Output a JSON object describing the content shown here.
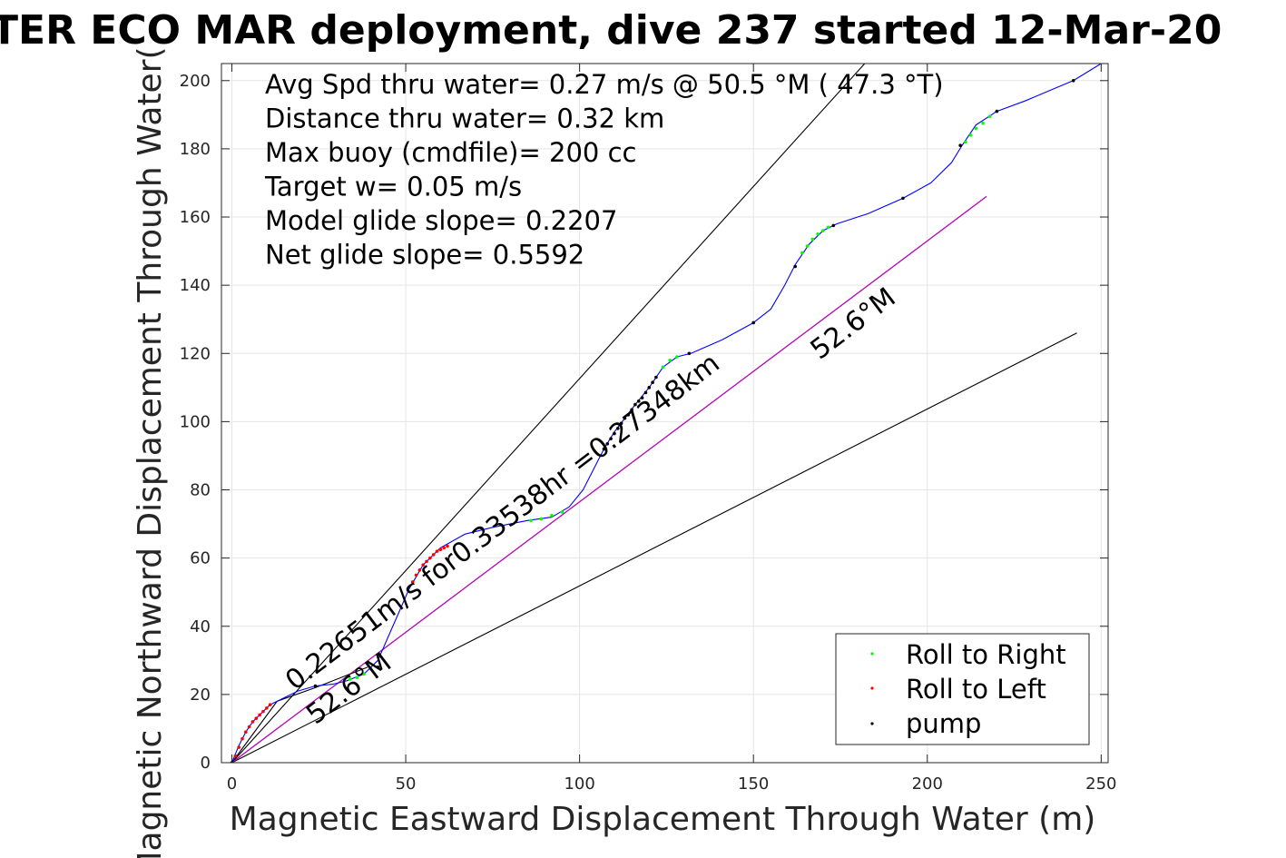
{
  "chart_data": {
    "type": "scatter",
    "title": "TER ECO MAR deployment, dive 237 started 12-Mar-20",
    "xlabel": "Magnetic Eastward Displacement Through Water (m)",
    "ylabel": "Magnetic Northward Displacement Through Water(",
    "xlim": [
      -3,
      252
    ],
    "ylim": [
      0,
      205
    ],
    "xticks": [
      0,
      50,
      100,
      150,
      200,
      250
    ],
    "yticks": [
      0,
      20,
      40,
      60,
      80,
      100,
      120,
      140,
      160,
      180,
      200
    ],
    "grid": true,
    "info_lines": [
      "Avg Spd thru water=  0.27 m/s @  50.5 °M ( 47.3 °T)",
      "Distance thru water=  0.32 km",
      "Max buoy (cmdfile)= 200 cc",
      "Target w= 0.05 m/s",
      "Model glide slope= 0.2207",
      "Net glide slope= 0.5592"
    ],
    "annotations": [
      {
        "text": "0.22651m/s for0.33538hr =0.27348km",
        "x": 18,
        "y": 21,
        "angle": -37.2
      },
      {
        "text": "52.6°M",
        "x": 24,
        "y": 11,
        "angle": -37.2
      },
      {
        "text": "52.6°M",
        "x": 169,
        "y": 118,
        "angle": -37.2
      }
    ],
    "reference_lines": [
      {
        "name": "upper-bound",
        "color": "#000000",
        "x": [
          0,
          182
        ],
        "y": [
          0,
          205
        ]
      },
      {
        "name": "lower-bound",
        "color": "#000000",
        "x": [
          0,
          243
        ],
        "y": [
          0,
          126
        ]
      },
      {
        "name": "net-heading",
        "color": "#000000",
        "x": [
          0,
          217
        ],
        "y": [
          0,
          166
        ]
      },
      {
        "name": "heading-overlay",
        "color": "#cc00cc",
        "x": [
          0,
          217
        ],
        "y": [
          0,
          166
        ]
      },
      {
        "name": "cross-line",
        "color": "#000000",
        "x": [
          0,
          13,
          24,
          39
        ],
        "y": [
          0,
          18,
          22,
          28
        ]
      }
    ],
    "track": {
      "color": "#0000ff",
      "points": [
        [
          0,
          0
        ],
        [
          2,
          5
        ],
        [
          4,
          9
        ],
        [
          6,
          12
        ],
        [
          8,
          14
        ],
        [
          11,
          17
        ],
        [
          15,
          19
        ],
        [
          19,
          21
        ],
        [
          24,
          22.5
        ],
        [
          29,
          23
        ],
        [
          33,
          24
        ],
        [
          38,
          26
        ],
        [
          42,
          30
        ],
        [
          45,
          37
        ],
        [
          48,
          44
        ],
        [
          51,
          51
        ],
        [
          55,
          58
        ],
        [
          60,
          63
        ],
        [
          67,
          67
        ],
        [
          75,
          69
        ],
        [
          85,
          71
        ],
        [
          92,
          72
        ],
        [
          97,
          75
        ],
        [
          101,
          80
        ],
        [
          104,
          86
        ],
        [
          107,
          92
        ],
        [
          110,
          97
        ],
        [
          113,
          101
        ],
        [
          116,
          105
        ],
        [
          120,
          110
        ],
        [
          124,
          116
        ],
        [
          128,
          119
        ],
        [
          132,
          120
        ],
        [
          141,
          124
        ],
        [
          150,
          129
        ],
        [
          155,
          133
        ],
        [
          159,
          140
        ],
        [
          162,
          146
        ],
        [
          166,
          152
        ],
        [
          170,
          156
        ],
        [
          174,
          158
        ],
        [
          183,
          161
        ],
        [
          193,
          165.5
        ],
        [
          201,
          170
        ],
        [
          207,
          176
        ],
        [
          210,
          181
        ],
        [
          214,
          187
        ],
        [
          220,
          191
        ],
        [
          228,
          194
        ],
        [
          235,
          197
        ],
        [
          242,
          200
        ],
        [
          250,
          205
        ]
      ]
    },
    "series": [
      {
        "name": "Roll to Right",
        "color": "#00ff00",
        "points": [
          [
            34,
            24.5
          ],
          [
            36,
            25
          ],
          [
            38,
            26
          ],
          [
            40,
            27.5
          ],
          [
            86,
            71
          ],
          [
            89,
            71.5
          ],
          [
            92,
            72.5
          ],
          [
            95,
            73.5
          ],
          [
            124,
            116
          ],
          [
            126,
            118
          ],
          [
            128,
            119
          ],
          [
            164,
            149.5
          ],
          [
            165.5,
            151.5
          ],
          [
            167,
            153.5
          ],
          [
            168.5,
            155
          ],
          [
            170,
            156
          ],
          [
            171.5,
            157
          ],
          [
            211,
            182
          ],
          [
            212.5,
            184
          ],
          [
            214,
            186
          ],
          [
            216,
            187.5
          ],
          [
            218,
            189.5
          ]
        ]
      },
      {
        "name": "Roll to Left",
        "color": "#ff0000",
        "points": [
          [
            1,
            2
          ],
          [
            2,
            4.5
          ],
          [
            3,
            7
          ],
          [
            4,
            9
          ],
          [
            5,
            10.5
          ],
          [
            6,
            12
          ],
          [
            7,
            13
          ],
          [
            8,
            14
          ],
          [
            9,
            15
          ],
          [
            10,
            16
          ],
          [
            11,
            17
          ],
          [
            52,
            53
          ],
          [
            53,
            55
          ],
          [
            54,
            56.5
          ],
          [
            55,
            58
          ],
          [
            56,
            59
          ],
          [
            57,
            60
          ],
          [
            58,
            61
          ],
          [
            59,
            62
          ],
          [
            60,
            62.5
          ],
          [
            61,
            63
          ],
          [
            62,
            63.5
          ]
        ]
      },
      {
        "name": "pump",
        "color": "#000000",
        "points": [
          [
            0,
            0
          ],
          [
            24,
            22.5
          ],
          [
            42,
            28
          ],
          [
            107,
            92
          ],
          [
            108,
            93.5
          ],
          [
            109,
            95
          ],
          [
            110,
            96.5
          ],
          [
            111,
            98
          ],
          [
            112,
            99.5
          ],
          [
            113,
            101
          ],
          [
            114,
            102
          ],
          [
            115,
            103.5
          ],
          [
            116,
            105
          ],
          [
            117,
            106
          ],
          [
            118,
            107
          ],
          [
            119,
            108.5
          ],
          [
            120,
            110
          ],
          [
            121,
            111.5
          ],
          [
            122,
            113
          ],
          [
            131.5,
            120
          ],
          [
            150,
            129
          ],
          [
            162,
            145.5
          ],
          [
            173,
            157.5
          ],
          [
            193,
            165.5
          ],
          [
            209.5,
            181
          ],
          [
            220,
            191
          ],
          [
            242,
            200
          ]
        ]
      }
    ],
    "legend": {
      "position": "bottom-right",
      "entries": [
        {
          "label": "Roll to Right",
          "color": "#00ff00"
        },
        {
          "label": "Roll to Left",
          "color": "#ff0000"
        },
        {
          "label": "pump",
          "color": "#000000"
        }
      ]
    }
  }
}
